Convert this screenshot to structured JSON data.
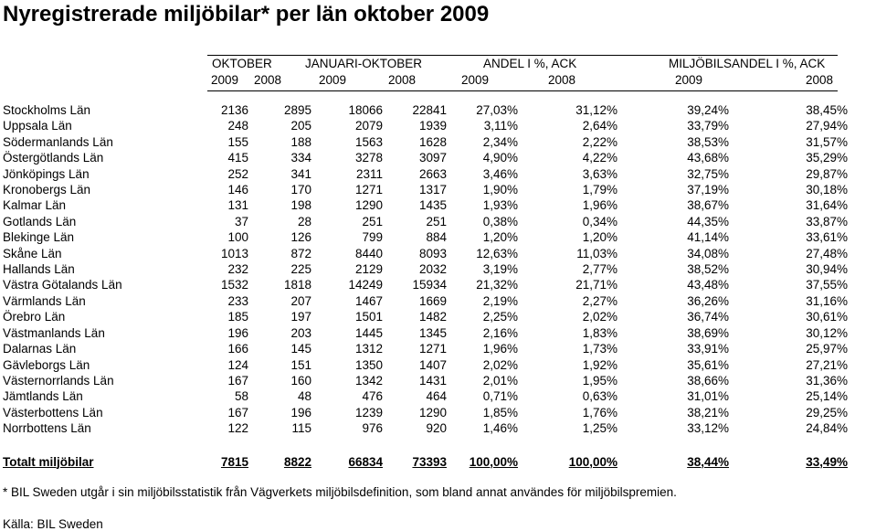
{
  "title": "Nyregistrerade miljöbilar* per län oktober 2009",
  "header": {
    "groups": [
      "OKTOBER",
      "JANUARI-OKTOBER",
      "ANDEL I %, ACK",
      "MILJÖBILSANDEL I %, ACK"
    ],
    "years": [
      "2009",
      "2008",
      "2009",
      "2008",
      "2009",
      "2008",
      "2009",
      "2008"
    ]
  },
  "rows": [
    [
      "Stockholms Län",
      "2136",
      "2895",
      "18066",
      "22841",
      "27,03%",
      "31,12%",
      "39,24%",
      "38,45%"
    ],
    [
      "Uppsala Län",
      "248",
      "205",
      "2079",
      "1939",
      "3,11%",
      "2,64%",
      "33,79%",
      "27,94%"
    ],
    [
      "Södermanlands Län",
      "155",
      "188",
      "1563",
      "1628",
      "2,34%",
      "2,22%",
      "38,53%",
      "31,57%"
    ],
    [
      "Östergötlands Län",
      "415",
      "334",
      "3278",
      "3097",
      "4,90%",
      "4,22%",
      "43,68%",
      "35,29%"
    ],
    [
      "Jönköpings Län",
      "252",
      "341",
      "2311",
      "2663",
      "3,46%",
      "3,63%",
      "32,75%",
      "29,87%"
    ],
    [
      "Kronobergs Län",
      "146",
      "170",
      "1271",
      "1317",
      "1,90%",
      "1,79%",
      "37,19%",
      "30,18%"
    ],
    [
      "Kalmar Län",
      "131",
      "198",
      "1290",
      "1435",
      "1,93%",
      "1,96%",
      "38,67%",
      "31,64%"
    ],
    [
      "Gotlands Län",
      "37",
      "28",
      "251",
      "251",
      "0,38%",
      "0,34%",
      "44,35%",
      "33,87%"
    ],
    [
      "Blekinge Län",
      "100",
      "126",
      "799",
      "884",
      "1,20%",
      "1,20%",
      "41,14%",
      "33,61%"
    ],
    [
      "Skåne Län",
      "1013",
      "872",
      "8440",
      "8093",
      "12,63%",
      "11,03%",
      "34,08%",
      "27,48%"
    ],
    [
      "Hallands Län",
      "232",
      "225",
      "2129",
      "2032",
      "3,19%",
      "2,77%",
      "38,52%",
      "30,94%"
    ],
    [
      "Västra Götalands Län",
      "1532",
      "1818",
      "14249",
      "15934",
      "21,32%",
      "21,71%",
      "43,48%",
      "37,55%"
    ],
    [
      "Värmlands Län",
      "233",
      "207",
      "1467",
      "1669",
      "2,19%",
      "2,27%",
      "36,26%",
      "31,16%"
    ],
    [
      "Örebro Län",
      "185",
      "197",
      "1501",
      "1482",
      "2,25%",
      "2,02%",
      "36,74%",
      "30,61%"
    ],
    [
      "Västmanlands Län",
      "196",
      "203",
      "1445",
      "1345",
      "2,16%",
      "1,83%",
      "38,69%",
      "30,12%"
    ],
    [
      "Dalarnas Län",
      "166",
      "145",
      "1312",
      "1271",
      "1,96%",
      "1,73%",
      "33,91%",
      "25,97%"
    ],
    [
      "Gävleborgs Län",
      "124",
      "151",
      "1350",
      "1407",
      "2,02%",
      "1,92%",
      "35,61%",
      "27,21%"
    ],
    [
      "Västernorrlands Län",
      "167",
      "160",
      "1342",
      "1431",
      "2,01%",
      "1,95%",
      "38,66%",
      "31,36%"
    ],
    [
      "Jämtlands Län",
      "58",
      "48",
      "476",
      "464",
      "0,71%",
      "0,63%",
      "31,01%",
      "25,14%"
    ],
    [
      "Västerbottens Län",
      "167",
      "196",
      "1239",
      "1290",
      "1,85%",
      "1,76%",
      "38,21%",
      "29,25%"
    ],
    [
      "Norrbottens Län",
      "122",
      "115",
      "976",
      "920",
      "1,46%",
      "1,25%",
      "33,12%",
      "24,84%"
    ]
  ],
  "total": [
    "Totalt miljöbilar",
    "7815",
    "8822",
    "66834",
    "73393",
    "100,00%",
    "100,00%",
    "38,44%",
    "33,49%"
  ],
  "footnote": "* BIL Sweden utgår i sin miljöbilsstatistik från Vägverkets miljöbilsdefinition, som bland annat användes för miljöbilspremien.",
  "source": "Källa: BIL Sweden"
}
